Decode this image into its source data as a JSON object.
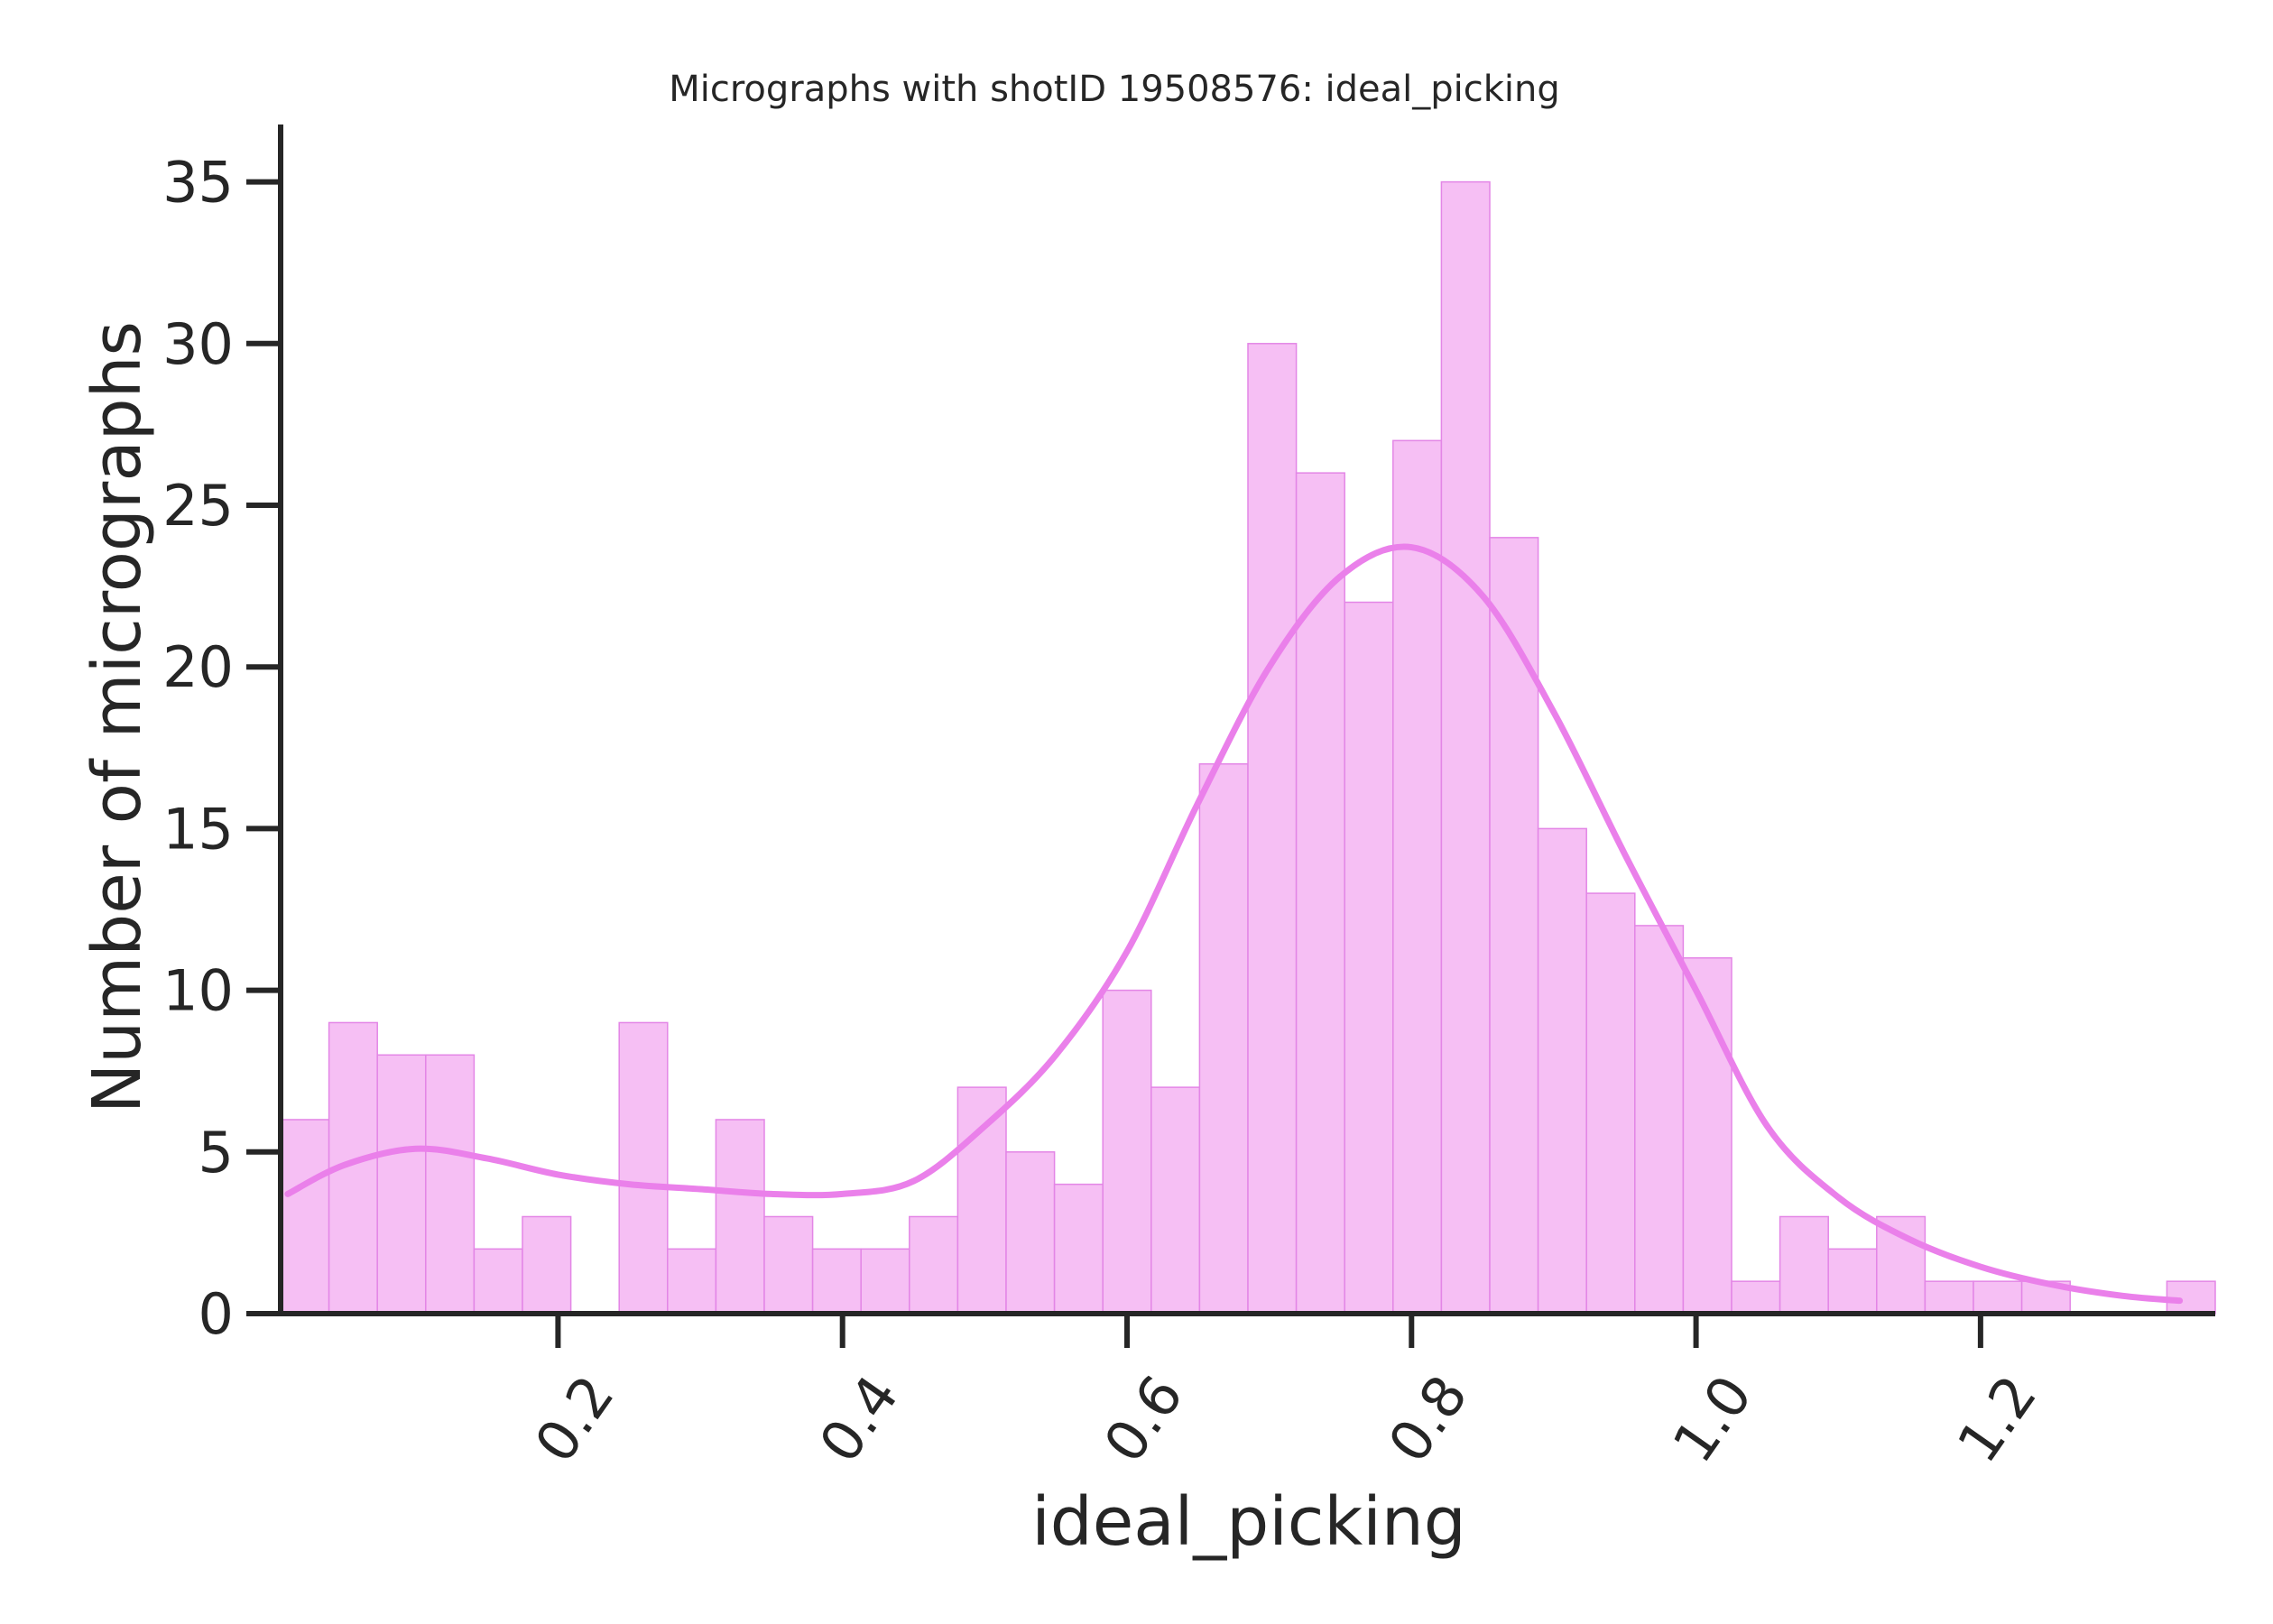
{
  "chart_data": {
    "type": "bar",
    "title": "Micrographs with shotID 19508576: ideal_picking",
    "xlabel": "ideal_picking",
    "ylabel": "Number of micrographs",
    "xlim": [
      0.005,
      1.365
    ],
    "ylim": [
      0,
      37
    ],
    "xticks": [
      0.2,
      0.4,
      0.6,
      0.8,
      1.0,
      1.2
    ],
    "xtick_labels": [
      "0.2",
      "0.4",
      "0.6",
      "0.8",
      "1.0",
      "1.2"
    ],
    "yticks": [
      0,
      5,
      10,
      15,
      20,
      25,
      30,
      35
    ],
    "ytick_labels": [
      "0",
      "5",
      "10",
      "15",
      "20",
      "25",
      "30",
      "35"
    ],
    "bin_start": 0.005,
    "bin_width": 0.034,
    "counts": [
      6,
      9,
      8,
      8,
      2,
      3,
      0,
      9,
      2,
      6,
      3,
      2,
      2,
      3,
      7,
      5,
      4,
      10,
      7,
      17,
      30,
      26,
      22,
      27,
      35,
      24,
      15,
      13,
      12,
      11,
      1,
      3,
      2,
      3,
      1,
      1,
      1,
      0,
      0,
      1
    ],
    "kde": {
      "x": [
        0.01,
        0.05,
        0.1,
        0.15,
        0.2,
        0.25,
        0.3,
        0.35,
        0.4,
        0.45,
        0.5,
        0.55,
        0.6,
        0.65,
        0.7,
        0.75,
        0.8,
        0.85,
        0.9,
        0.95,
        1.0,
        1.05,
        1.1,
        1.15,
        1.2,
        1.25,
        1.3,
        1.34
      ],
      "y": [
        3.7,
        4.6,
        5.1,
        4.8,
        4.3,
        4.0,
        3.85,
        3.7,
        3.7,
        4.1,
        5.8,
        8.0,
        11.2,
        15.8,
        20.0,
        22.8,
        23.7,
        22.2,
        18.6,
        14.2,
        10.0,
        5.8,
        3.6,
        2.3,
        1.45,
        0.9,
        0.55,
        0.4
      ]
    },
    "colors": {
      "bar_fill": "#f6bff4",
      "bar_edge": "#e386e6",
      "kde_line": "#ea80ea"
    },
    "grid": false,
    "legend": "none"
  }
}
